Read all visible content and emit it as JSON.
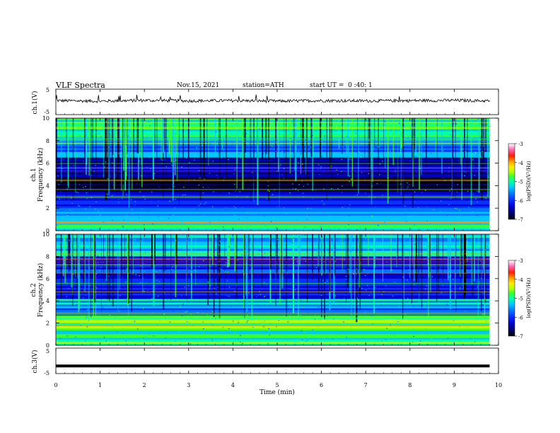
{
  "header": {
    "title": "VLF Spectra",
    "date": "Nov.15, 2021",
    "station": "station=ATH",
    "start": "start UT =  0 :40: 1"
  },
  "colors": {
    "spectro_palette": [
      "#000000",
      "#00006e",
      "#0000d2",
      "#0a32ff",
      "#0078ff",
      "#00c8ff",
      "#00ffaa",
      "#3cff28",
      "#b4ff00",
      "#ffeb00",
      "#ff9600",
      "#ff1e00",
      "#ff64b4",
      "#ffffff"
    ],
    "trace": "#000000"
  },
  "chart_data": [
    {
      "type": "line",
      "ylabel": "ch.1(V)",
      "ylim": [
        -5,
        5
      ],
      "yticks": [
        "5",
        "-5"
      ],
      "description_series": "waveform around +0.5 V with small fluctuations",
      "x": [
        0,
        1,
        2,
        3,
        4,
        5,
        6,
        7,
        8,
        9,
        9.8
      ],
      "y": [
        0.5,
        0.3,
        0.6,
        0.4,
        0.5,
        0.3,
        0.5,
        0.4,
        0.5,
        0.6,
        0.4
      ]
    },
    {
      "type": "heatmap",
      "ylabel": "ch.1",
      "ylabel2": "Frequency (kHz)",
      "ylim": [
        0,
        10
      ],
      "yticks": [
        "0",
        "2",
        "4",
        "6",
        "8",
        "10"
      ],
      "colorbar": {
        "label": "log(PSD)(V²/Hz)",
        "range": [
          -7,
          -3
        ],
        "ticks": [
          "-3",
          "-4",
          "-5",
          "-6",
          "-7"
        ]
      }
    },
    {
      "type": "heatmap",
      "ylabel": "ch.2",
      "ylabel2": "Frequency (kHz)",
      "ylim": [
        0,
        10
      ],
      "yticks": [
        "0",
        "2",
        "4",
        "6",
        "8",
        "10"
      ],
      "colorbar": {
        "label": "log(PSD)(V²/Hz)",
        "range": [
          -7,
          -3
        ],
        "ticks": [
          "-3",
          "-4",
          "-5",
          "-6",
          "-7"
        ]
      }
    },
    {
      "type": "line",
      "ylabel": "ch.3(V)",
      "ylim": [
        -5,
        5
      ],
      "yticks": [
        "5",
        "0",
        "-5"
      ],
      "x": [
        0,
        9.8
      ],
      "y": [
        -2,
        -2
      ]
    }
  ],
  "xaxis": {
    "label": "Time (min)",
    "range": [
      0,
      10
    ],
    "ticks": [
      "0",
      "1",
      "2",
      "3",
      "4",
      "5",
      "6",
      "7",
      "8",
      "9",
      "10"
    ]
  }
}
